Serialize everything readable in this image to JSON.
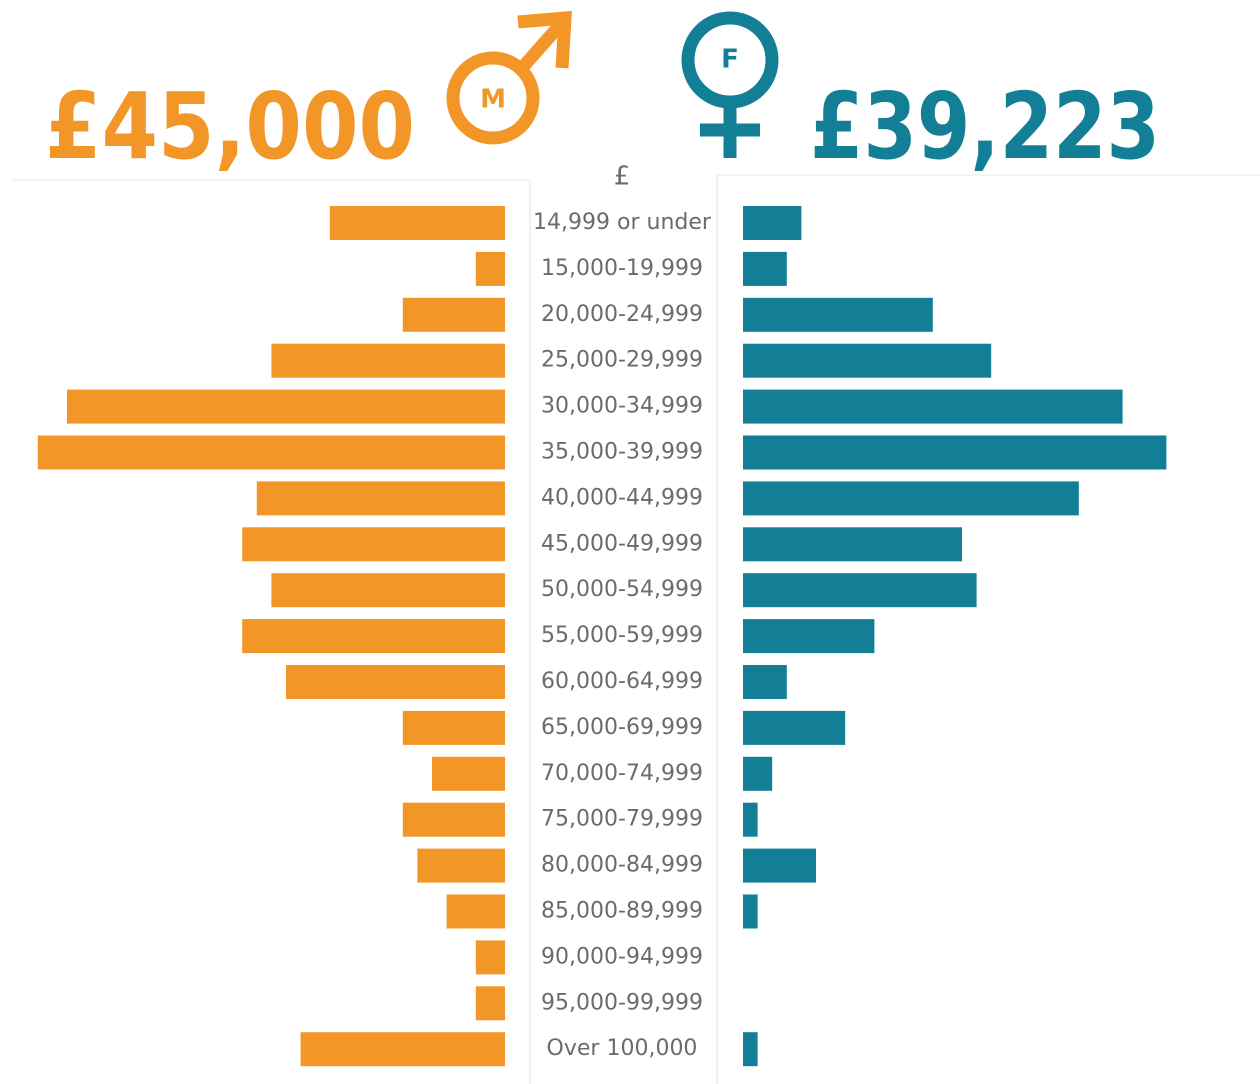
{
  "header": {
    "male_value": "£45,000",
    "female_value": "£39,223",
    "male_symbol": "M",
    "female_symbol": "F"
  },
  "chart_data": {
    "type": "butterfly",
    "axis_label": "£",
    "categories": [
      "14,999 or under",
      "15,000-19,999",
      "20,000-24,999",
      "25,000-29,999",
      "30,000-34,999",
      "35,000-39,999",
      "40,000-44,999",
      "45,000-49,999",
      "50,000-54,999",
      "55,000-59,999",
      "60,000-64,999",
      "65,000-69,999",
      "70,000-74,999",
      "75,000-79,999",
      "80,000-84,999",
      "85,000-89,999",
      "90,000-94,999",
      "95,000-99,999",
      "Over 100,000"
    ],
    "series": [
      {
        "color": "#f29727",
        "values": [
          12,
          2,
          7,
          16,
          30,
          32,
          17,
          18,
          16,
          18,
          15,
          7,
          5,
          7,
          6,
          4,
          2,
          2,
          14
        ]
      },
      {
        "color": "#137f96",
        "values": [
          4,
          3,
          13,
          17,
          26,
          29,
          23,
          15,
          16,
          9,
          3,
          7,
          2,
          1,
          5,
          1,
          0,
          0,
          1
        ]
      }
    ]
  }
}
